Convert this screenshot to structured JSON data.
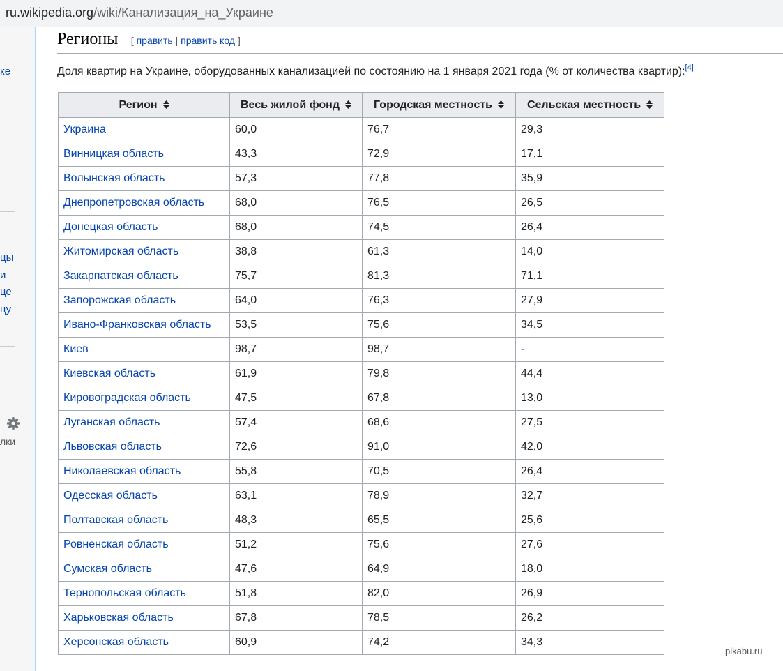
{
  "browser": {
    "url_domain": "ru.wikipedia.org",
    "url_path": "/wiki/Канализация_на_Украине"
  },
  "sidebar": {
    "fragments": [
      "ке",
      "цы",
      "и",
      "це",
      "цу",
      "лки"
    ]
  },
  "section": {
    "title": "Регионы",
    "edit_open": "[",
    "edit_label": "править",
    "edit_sep": "|",
    "edit_code_label": "править код",
    "edit_close": "]"
  },
  "intro": {
    "text": "Доля квартир на Украине, оборудованных канализацией по состоянию на 1 января 2021 года (% от количества квартир):",
    "ref": "[4]"
  },
  "table": {
    "headers": [
      "Регион",
      "Весь жилой фонд",
      "Городская местность",
      "Сельская местность"
    ],
    "rows": [
      [
        "Украина",
        "60,0",
        "76,7",
        "29,3"
      ],
      [
        "Винницкая область",
        "43,3",
        "72,9",
        "17,1"
      ],
      [
        "Волынская область",
        "57,3",
        "77,8",
        "35,9"
      ],
      [
        "Днепропетровская область",
        "68,0",
        "76,5",
        "26,5"
      ],
      [
        "Донецкая область",
        "68,0",
        "74,5",
        "26,4"
      ],
      [
        "Житомирская область",
        "38,8",
        "61,3",
        "14,0"
      ],
      [
        "Закарпатская область",
        "75,7",
        "81,3",
        "71,1"
      ],
      [
        "Запорожская область",
        "64,0",
        "76,3",
        "27,9"
      ],
      [
        "Ивано-Франковская область",
        "53,5",
        "75,6",
        "34,5"
      ],
      [
        "Киев",
        "98,7",
        "98,7",
        "-"
      ],
      [
        "Киевская область",
        "61,9",
        "79,8",
        "44,4"
      ],
      [
        "Кировоградская область",
        "47,5",
        "67,8",
        "13,0"
      ],
      [
        "Луганская область",
        "57,4",
        "68,6",
        "27,5"
      ],
      [
        "Львовская область",
        "72,6",
        "91,0",
        "42,0"
      ],
      [
        "Николаевская область",
        "55,8",
        "70,5",
        "26,4"
      ],
      [
        "Одесская область",
        "63,1",
        "78,9",
        "32,7"
      ],
      [
        "Полтавская область",
        "48,3",
        "65,5",
        "25,6"
      ],
      [
        "Ровненская область",
        "51,2",
        "75,6",
        "27,6"
      ],
      [
        "Сумская область",
        "47,6",
        "64,9",
        "18,0"
      ],
      [
        "Тернопольская область",
        "51,8",
        "82,0",
        "26,9"
      ],
      [
        "Харьковская область",
        "67,8",
        "78,5",
        "26,2"
      ],
      [
        "Херсонская область",
        "60,9",
        "74,2",
        "34,3"
      ]
    ]
  },
  "watermark": "pikabu.ru",
  "colors": {
    "link": "#0645ad",
    "header_bg": "#eaecf0",
    "border": "#a2a9b1"
  }
}
